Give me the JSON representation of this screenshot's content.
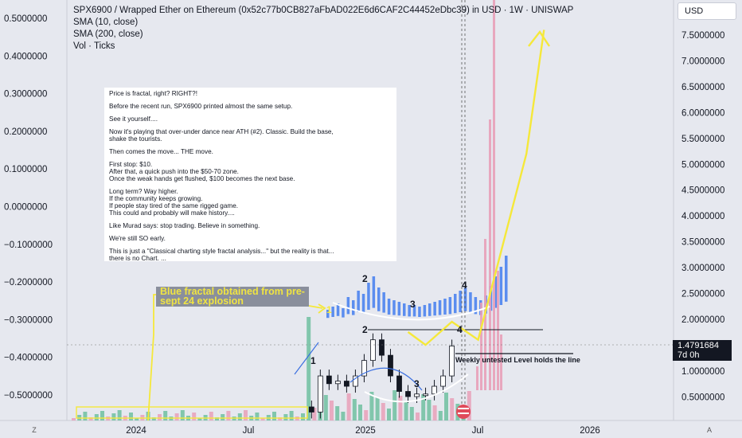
{
  "header": {
    "title": "SPX6900 / Wrapped Ether on Ethereum (0x52c77b0CB827aFbAD022E6d6CAF2C44452eDbc39) in USD · 1W · UNISWAP",
    "indicator_1": "SMA (10, close)",
    "indicator_2": "SMA (200, close)",
    "indicator_3": "Vol · Ticks"
  },
  "currency_button": "USD",
  "note": {
    "lines": [
      "Price is fractal, right? RIGHT?!",
      "Before the recent run, SPX6900 printed almost the same setup.",
      "See it yourself....",
      "Now it's playing that over-under dance near ATH (#2). Classic. Build the base,\nshake the tourists.",
      "Then comes the move... THE move.",
      "First stop: $10.\nAfter that, a quick push into the $50-70 zone.\nOnce the weak hands get flushed, $100 becomes the next base.",
      "Long term? Way higher.\nIf the community keeps growing.\nIf people stay tired of the same rigged game.\nThis could and probably will make history....",
      "Like Murad says: stop trading. Believe in something.",
      "We're still SO early.",
      "This is just a \"Classical charting style fractal analysis...\" but the reality is that...\nthere is no Chart. ..."
    ]
  },
  "annotations": {
    "blue_fractal_label": "Blue fractal obtained from pre-sept 24 explosion",
    "weekly_level": "Weekly untested Level holds the line",
    "fractal_numbers": [
      "1",
      "2",
      "3",
      "4"
    ]
  },
  "price_box": {
    "price": "1.4791684",
    "countdown": "7d 0h"
  },
  "buttons": {
    "left": "Z",
    "right": "A"
  },
  "colors": {
    "background": "#e6e8ef",
    "up_candle": "#ffffff",
    "down_candle": "#131722",
    "blue_fractal": "#5b8def",
    "pink_fractal": "#e8a0b8",
    "yellow_path": "#f5e83a",
    "volume_up": "#6fbfa0",
    "volume_down": "#e8a0b8"
  },
  "chart_data": {
    "type": "line",
    "x_ticks": [
      "2024",
      "Jul",
      "2025",
      "Jul",
      "2026"
    ],
    "left_axis": {
      "ticks": [
        "0.5000000",
        "0.4000000",
        "0.3000000",
        "0.2000000",
        "0.1000000",
        "0.0000000",
        "−0.1000000",
        "−0.2000000",
        "−0.3000000",
        "−0.4000000",
        "−0.5000000"
      ],
      "range": [
        -0.55,
        0.53
      ]
    },
    "right_axis": {
      "ticks": [
        "7.5000000",
        "7.0000000",
        "6.5000000",
        "6.0000000",
        "5.5000000",
        "5.0000000",
        "4.5000000",
        "4.0000000",
        "3.5000000",
        "3.0000000",
        "2.5000000",
        "2.0000000",
        "1.5000000",
        "1.0000000",
        "0.5000000"
      ],
      "range": [
        0.0,
        7.9
      ],
      "scale": "linear"
    },
    "current_price": 1.4791684,
    "weekly_level": 1.35,
    "projection_path": {
      "name": "",
      "x": [
        "2025-03-10",
        "2025-04-07",
        "2025-05-19",
        "2025-06-30",
        "2025-09-15",
        "2025-10-13"
      ],
      "y": [
        1.75,
        1.5,
        1.95,
        1.6,
        5.2,
        7.6
      ]
    },
    "candles_approx": {
      "x": [
        "2024-10-07",
        "2024-10-21",
        "2024-11-04",
        "2024-11-18",
        "2024-12-02",
        "2024-12-16",
        "2024-12-30",
        "2025-01-13",
        "2025-01-27",
        "2025-02-10",
        "2025-02-24",
        "2025-03-10",
        "2025-03-24",
        "2025-04-07",
        "2025-04-21",
        "2025-05-05",
        "2025-05-19"
      ],
      "close": [
        0.2,
        0.9,
        0.75,
        0.8,
        0.7,
        0.9,
        1.2,
        1.6,
        1.3,
        0.9,
        0.6,
        0.5,
        0.55,
        0.55,
        0.7,
        0.9,
        1.48
      ]
    },
    "grid": false,
    "legend": "none"
  }
}
